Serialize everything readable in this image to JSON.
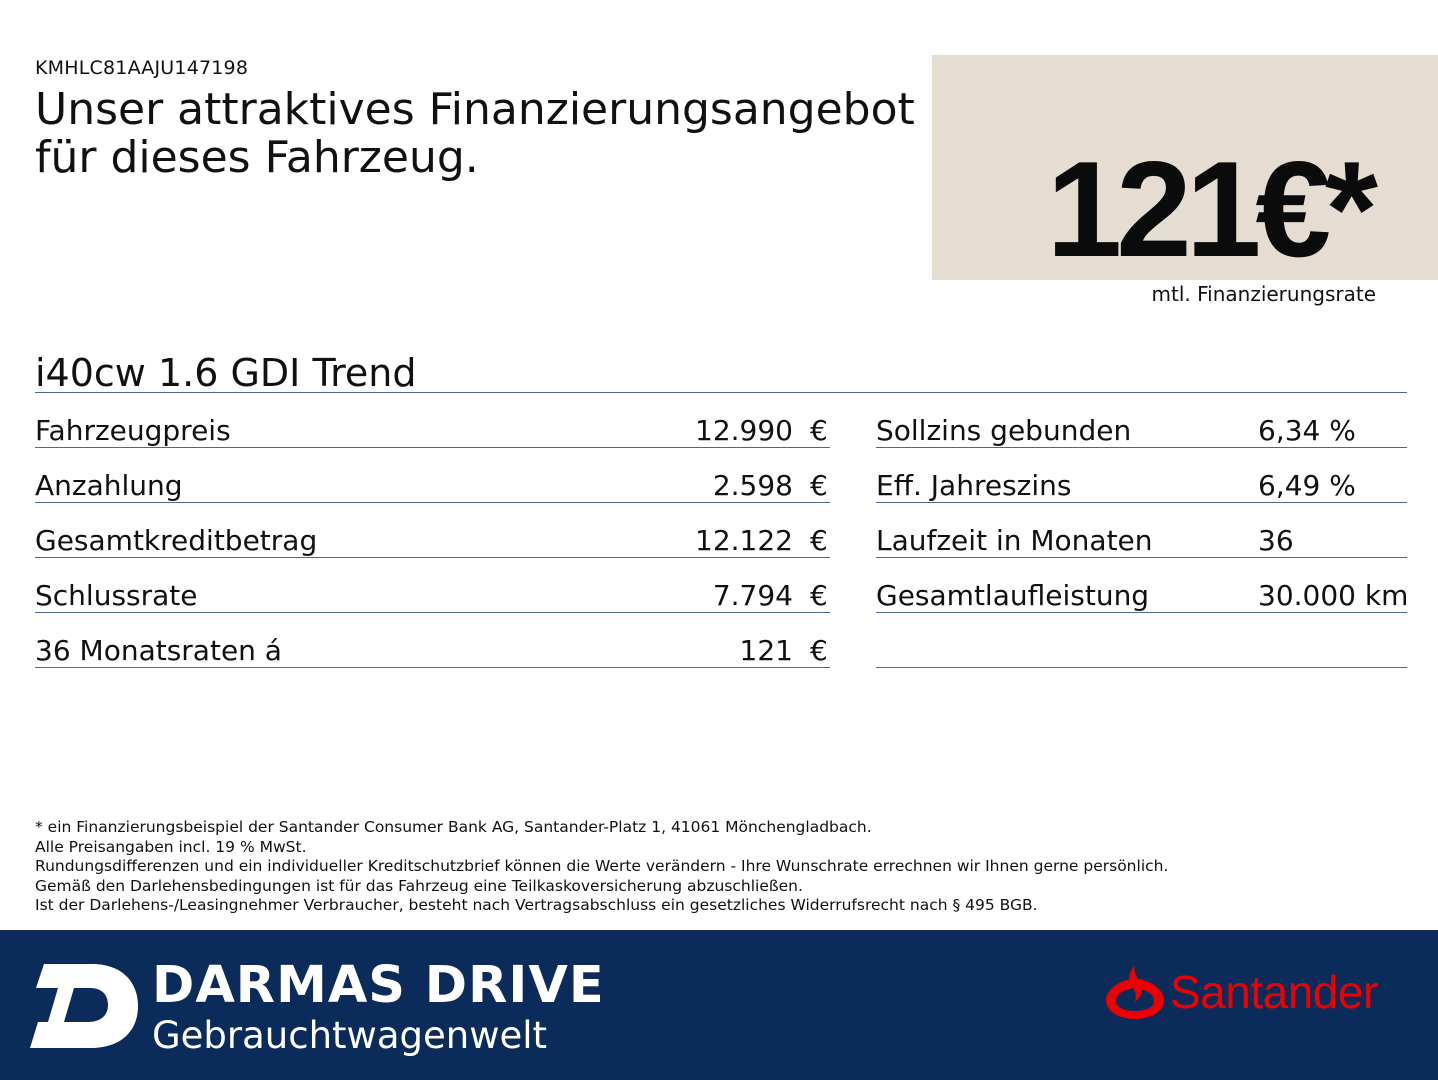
{
  "vin": "KMHLC81AAJU147198",
  "headline": {
    "line1": "Unser attraktives Finanzierungsangebot",
    "line2": "für dieses Fahrzeug."
  },
  "rate_box": {
    "amount": "121€*",
    "label": "mtl. Finanzierungsrate",
    "background": "#e6ddd2"
  },
  "model": "i40cw 1.6 GDI Trend",
  "left_table": [
    {
      "label": "Fahrzeugpreis",
      "value": "12.990",
      "unit": "€"
    },
    {
      "label": "Anzahlung",
      "value": "2.598",
      "unit": "€"
    },
    {
      "label": "Gesamtkreditbetrag",
      "value": "12.122",
      "unit": "€"
    },
    {
      "label": "Schlussrate",
      "value": "7.794",
      "unit": "€"
    },
    {
      "label": "36 Monatsraten á",
      "value": "121",
      "unit": "€"
    }
  ],
  "right_table": [
    {
      "label": "Sollzins gebunden",
      "value": "6,34 %"
    },
    {
      "label": "Eff. Jahreszins",
      "value": "6,49 %"
    },
    {
      "label": "Laufzeit in Monaten",
      "value": "36"
    },
    {
      "label": "Gesamtlaufleistung",
      "value": "30.000 km"
    }
  ],
  "footnotes": [
    "* ein Finanzierungsbeispiel der Santander Consumer Bank AG, Santander-Platz 1, 41061 Mönchengladbach.",
    "Alle Preisangaben incl. 19 % MwSt.",
    "Rundungsdifferenzen und ein individueller Kreditschutzbrief können die Werte verändern - Ihre Wunschrate errechnen wir Ihnen gerne persönlich.",
    "Gemäß den Darlehensbedingungen ist für das Fahrzeug eine Teilkaskoversicherung abzuschließen.",
    "Ist der Darlehens-/Leasingnehmer Verbraucher, besteht nach Vertragsabschluss ein gesetzliches Widerrufsrecht nach § 495 BGB."
  ],
  "brand": {
    "name": "DARMAS DRIVE",
    "tagline": "Gebrauchtwagenwelt",
    "partner": "Santander",
    "band_color": "#0b2b5b",
    "partner_color": "#ec0000"
  }
}
